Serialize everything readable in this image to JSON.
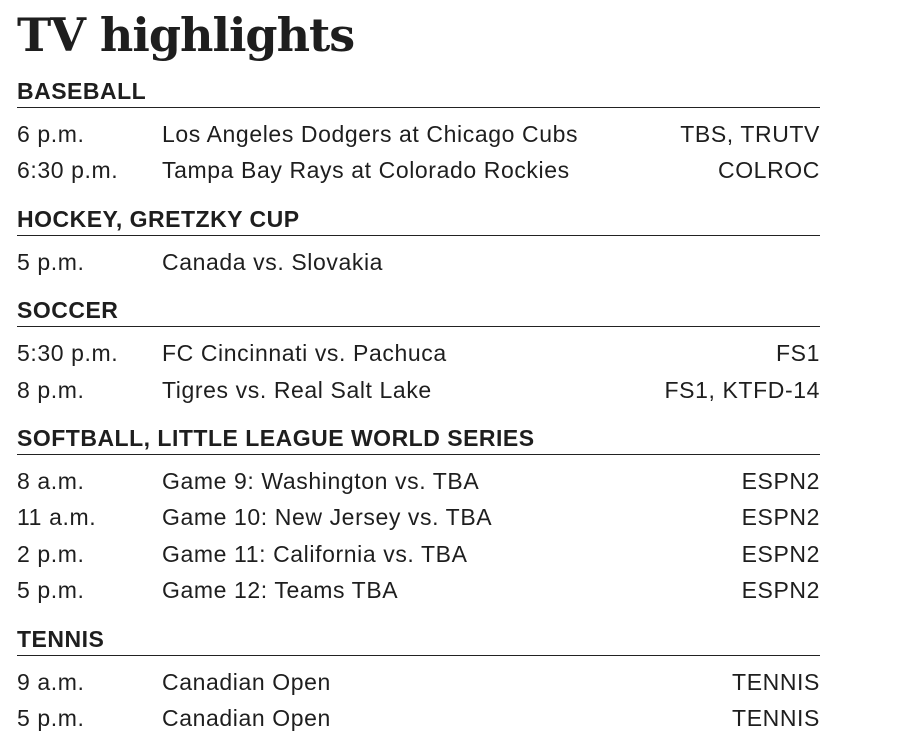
{
  "title": "TV highlights",
  "sections": [
    {
      "heading": "BASEBALL",
      "rows": [
        [
          "6 p.m.",
          "Los Angeles Dodgers at Chicago Cubs",
          "TBS, TRUTV"
        ],
        [
          "6:30 p.m.",
          "Tampa Bay Rays at Colorado Rockies",
          "COLROC"
        ]
      ]
    },
    {
      "heading": "HOCKEY, GRETZKY CUP",
      "rows": [
        [
          "5 p.m.",
          "Canada vs. Slovakia",
          null
        ]
      ]
    },
    {
      "heading": "SOCCER",
      "rows": [
        [
          "5:30 p.m.",
          "FC Cincinnati vs. Pachuca",
          "FS1"
        ],
        [
          "8 p.m.",
          "Tigres vs. Real Salt Lake",
          "FS1, KTFD-14"
        ]
      ]
    },
    {
      "heading": "SOFTBALL, LITTLE LEAGUE WORLD SERIES",
      "rows": [
        [
          "8 a.m.",
          "Game 9: Washington vs. TBA",
          "ESPN2"
        ],
        [
          "11 a.m.",
          "Game 10: New Jersey vs. TBA",
          "ESPN2"
        ],
        [
          "2 p.m.",
          "Game 11: California vs. TBA",
          "ESPN2"
        ],
        [
          "5 p.m.",
          "Game 12: Teams TBA",
          "ESPN2"
        ]
      ]
    },
    {
      "heading": "TENNIS",
      "rows": [
        [
          "9 a.m.",
          "Canadian Open",
          "TENNIS"
        ],
        [
          "5 p.m.",
          "Canadian Open",
          "TENNIS"
        ]
      ]
    }
  ]
}
